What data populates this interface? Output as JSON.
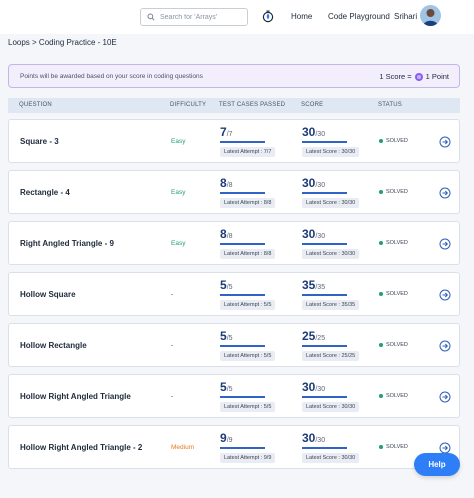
{
  "header": {
    "search_placeholder": "Search for 'Arrays'",
    "nav": {
      "home": "Home",
      "playground": "Code Playground",
      "user": "Srihari"
    }
  },
  "breadcrumb": "Loops > Coding Practice - 10E",
  "banner": {
    "text": "Points will be awarded based on your score in coding questions",
    "score_left": "1 Score =",
    "score_right": "1 Point"
  },
  "table": {
    "headers": {
      "question": "QUESTION",
      "difficulty": "DIFFICULTY",
      "tests": "TEST CASES PASSED",
      "score": "SCORE",
      "status": "STATUS"
    },
    "rows": [
      {
        "question": "Square - 3",
        "difficulty": "Easy",
        "tc": "7",
        "tc_total": "/7",
        "tc_chip": "Latest Attempt : 7/7",
        "score": "30",
        "score_total": "/30",
        "score_chip": "Latest Score : 30/30",
        "status": "SOLVED"
      },
      {
        "question": "Rectangle - 4",
        "difficulty": "Easy",
        "tc": "8",
        "tc_total": "/8",
        "tc_chip": "Latest Attempt : 8/8",
        "score": "30",
        "score_total": "/30",
        "score_chip": "Latest Score : 30/30",
        "status": "SOLVED"
      },
      {
        "question": "Right Angled Triangle - 9",
        "difficulty": "Easy",
        "tc": "8",
        "tc_total": "/8",
        "tc_chip": "Latest Attempt : 8/8",
        "score": "30",
        "score_total": "/30",
        "score_chip": "Latest Score : 30/30",
        "status": "SOLVED"
      },
      {
        "question": "Hollow Square",
        "difficulty": "-",
        "tc": "5",
        "tc_total": "/5",
        "tc_chip": "Latest Attempt : 5/5",
        "score": "35",
        "score_total": "/35",
        "score_chip": "Latest Score : 35/35",
        "status": "SOLVED"
      },
      {
        "question": "Hollow Rectangle",
        "difficulty": "-",
        "tc": "5",
        "tc_total": "/5",
        "tc_chip": "Latest Attempt : 5/5",
        "score": "25",
        "score_total": "/25",
        "score_chip": "Latest Score : 25/25",
        "status": "SOLVED"
      },
      {
        "question": "Hollow Right Angled Triangle",
        "difficulty": "-",
        "tc": "5",
        "tc_total": "/5",
        "tc_chip": "Latest Attempt : 5/5",
        "score": "30",
        "score_total": "/30",
        "score_chip": "Latest Score : 30/30",
        "status": "SOLVED"
      },
      {
        "question": "Hollow Right Angled Triangle - 2",
        "difficulty": "Medium",
        "tc": "9",
        "tc_total": "/9",
        "tc_chip": "Latest Attempt : 9/9",
        "score": "30",
        "score_total": "/30",
        "score_chip": "Latest Score : 30/30",
        "status": "SOLVED"
      }
    ]
  },
  "progress_fraction": 1,
  "help_label": "Help",
  "colors": {
    "easy": "#22a06b",
    "medium": "#e07b1f",
    "neutral": "#1e2a3b",
    "accent": "#2d7ef7",
    "solved": "#22a06b"
  },
  "icons": {
    "search": "search-icon",
    "streak": "streak-icon",
    "coin": "coin-icon",
    "go": "arrow-right-circle-icon"
  }
}
